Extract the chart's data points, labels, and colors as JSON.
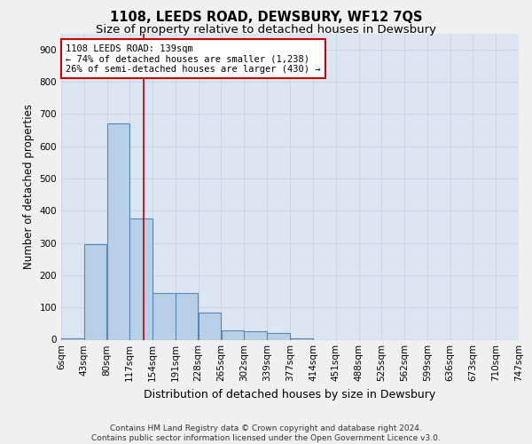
{
  "title": "1108, LEEDS ROAD, DEWSBURY, WF12 7QS",
  "subtitle": "Size of property relative to detached houses in Dewsbury",
  "xlabel": "Distribution of detached houses by size in Dewsbury",
  "ylabel": "Number of detached properties",
  "footer_line1": "Contains HM Land Registry data © Crown copyright and database right 2024.",
  "footer_line2": "Contains public sector information licensed under the Open Government Licence v3.0.",
  "bin_edges": [
    6,
    43,
    80,
    117,
    154,
    191,
    228,
    265,
    302,
    339,
    377,
    414,
    451,
    488,
    525,
    562,
    599,
    636,
    673,
    710,
    747
  ],
  "bar_heights": [
    5,
    295,
    670,
    375,
    145,
    145,
    85,
    30,
    25,
    20,
    5,
    0,
    0,
    0,
    0,
    0,
    0,
    0,
    0,
    0
  ],
  "bar_color": "#b8cfe8",
  "bar_edge_color": "#5588bb",
  "bar_linewidth": 0.8,
  "vline_x": 139,
  "vline_color": "#bb0000",
  "annotation_line1": "1108 LEEDS ROAD: 139sqm",
  "annotation_line2": "← 74% of detached houses are smaller (1,238)",
  "annotation_line3": "26% of semi-detached houses are larger (430) →",
  "annotation_box_color": "#ffffff",
  "annotation_box_edge_color": "#cc0000",
  "ylim": [
    0,
    950
  ],
  "yticks": [
    0,
    100,
    200,
    300,
    400,
    500,
    600,
    700,
    800,
    900
  ],
  "grid_color": "#c8d4e8",
  "bg_color": "#dce6f0",
  "fig_bg_color": "#f0f0f0",
  "title_fontsize": 10.5,
  "subtitle_fontsize": 9.5,
  "xlabel_fontsize": 9,
  "ylabel_fontsize": 8.5,
  "tick_fontsize": 7.5,
  "annotation_fontsize": 7.5,
  "footer_fontsize": 6.5
}
